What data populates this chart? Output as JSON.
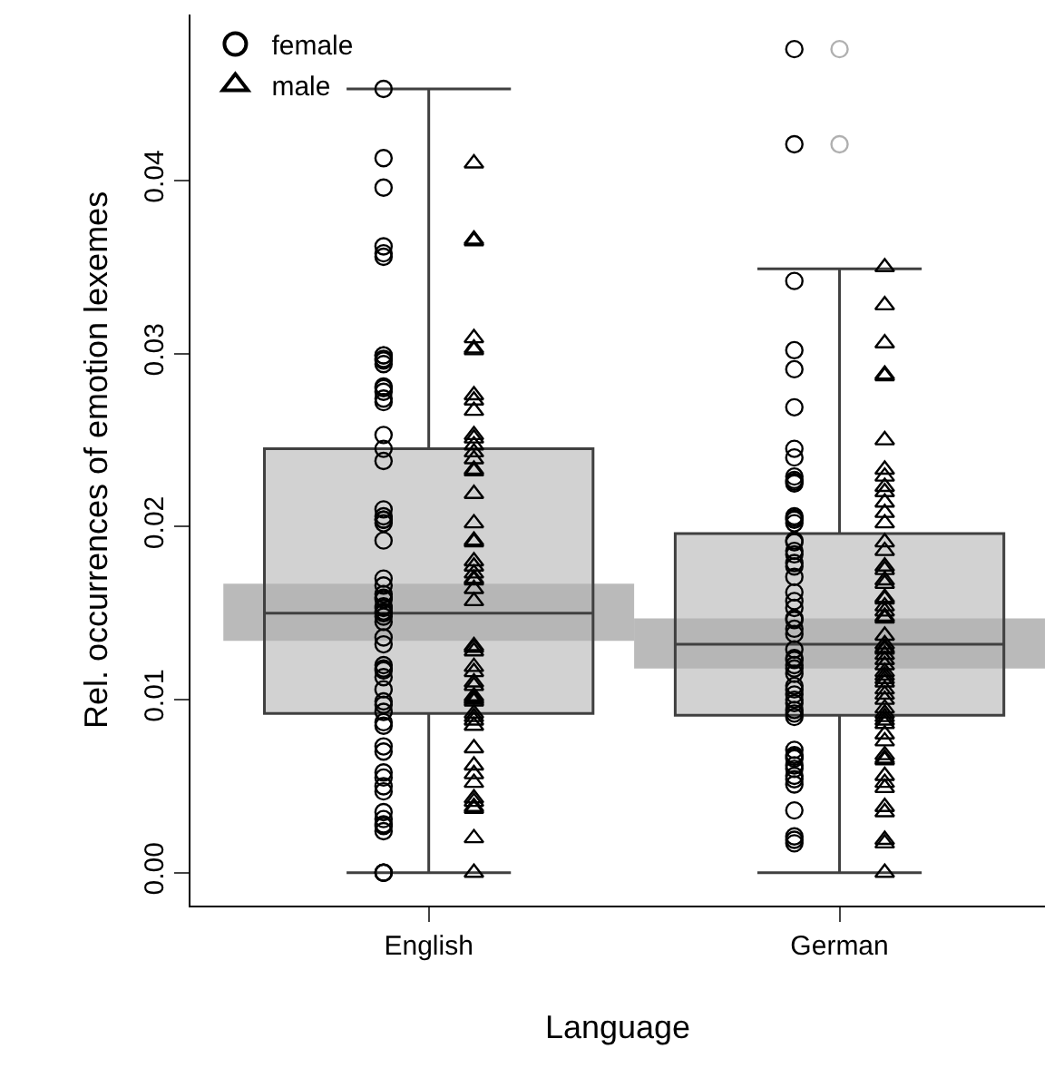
{
  "chart_data": {
    "type": "box",
    "xlabel": "Language",
    "ylabel": "Rel. occurrences of emotion lexemes",
    "categories": [
      "English",
      "German"
    ],
    "ylim": [
      -0.0019,
      0.0496
    ],
    "yticks": [
      {
        "value": 0,
        "label": "0.00"
      },
      {
        "value": 0.01,
        "label": "0.01"
      },
      {
        "value": 0.02,
        "label": "0.02"
      },
      {
        "value": 0.03,
        "label": "0.03"
      },
      {
        "value": 0.04,
        "label": "0.04"
      }
    ],
    "legend": "top left",
    "boxes": [
      {
        "low": 0,
        "q1": 0.0092,
        "median": 0.015,
        "q3": 0.0245,
        "high": 0.0453
      },
      {
        "low": 0,
        "q1": 0.0091,
        "median": 0.0132,
        "q3": 0.0196,
        "high": 0.0349,
        "outliers": [
          0.0476,
          0.0421
        ]
      }
    ],
    "series": [
      {
        "type": "bar",
        "color": "#8c8c8c",
        "base": [
          0.0134,
          0.0118
        ],
        "values": [
          0.0033,
          0.0029
        ]
      },
      {
        "type": "scatter",
        "name": "female",
        "color": "#000000",
        "marker": "circle",
        "x": [
          "English",
          "English",
          "English",
          "English",
          "English",
          "English",
          "English",
          "English",
          "English",
          "English",
          "English",
          "English",
          "English",
          "English",
          "English",
          "English",
          "English",
          "English",
          "English",
          "English",
          "English",
          "English",
          "English",
          "English",
          "English",
          "English",
          "English",
          "English",
          "English",
          "English",
          "English",
          "English",
          "English",
          "English",
          "English",
          "English",
          "English",
          "English",
          "English",
          "English",
          "English",
          "English",
          "English",
          "English",
          "English",
          "English",
          "English",
          "English",
          "English",
          "English",
          "English",
          "English",
          "English",
          "English",
          "English",
          "English",
          "English",
          "English",
          "English",
          "English",
          "English",
          "English",
          "German",
          "German",
          "German",
          "German",
          "German",
          "German",
          "German",
          "German",
          "German",
          "German",
          "German",
          "German",
          "German",
          "German",
          "German",
          "German",
          "German",
          "German",
          "German",
          "German",
          "German",
          "German",
          "German",
          "German",
          "German",
          "German",
          "German",
          "German",
          "German",
          "German",
          "German",
          "German",
          "German",
          "German",
          "German",
          "German",
          "German",
          "German",
          "German",
          "German",
          "German",
          "German",
          "German",
          "German",
          "German",
          "German",
          "German",
          "German",
          "German",
          "German",
          "German",
          "German",
          "German",
          "German",
          "German",
          "German",
          "German"
        ],
        "values": [
          0.0453,
          0.0413,
          0.0396,
          0.0362,
          0.0356,
          0.0358,
          0.0297,
          0.0299,
          0.0296,
          0.0294,
          0.0299,
          0.0281,
          0.028,
          0.0274,
          0.0278,
          0.0272,
          0.0253,
          0.0245,
          0.0238,
          0.021,
          0.0206,
          0.0204,
          0.0204,
          0.0202,
          0.0192,
          0.017,
          0.0166,
          0.0161,
          0.0159,
          0.0158,
          0.0154,
          0.0153,
          0.0151,
          0.015,
          0.0148,
          0.0145,
          0.0136,
          0.0132,
          0.012,
          0.0117,
          0.0113,
          0.0106,
          0.0118,
          0.0099,
          0.0097,
          0.0093,
          0.0087,
          0.0085,
          0.0073,
          0.007,
          0.0058,
          0.0055,
          0.005,
          0.0047,
          0.0035,
          0.0031,
          0.0027,
          0.0028,
          0.0024,
          0,
          0,
          0,
          0.0476,
          0.0421,
          0.0342,
          0.0302,
          0.0291,
          0.0269,
          0.0245,
          0.024,
          0.0229,
          0.0227,
          0.0225,
          0.0226,
          0.0206,
          0.0204,
          0.0205,
          0.0202,
          0.0192,
          0.0191,
          0.0186,
          0.0184,
          0.0179,
          0.0177,
          0.0171,
          0.0162,
          0.0157,
          0.0153,
          0.0147,
          0.0146,
          0.0141,
          0.0138,
          0.0129,
          0.0124,
          0.0123,
          0.012,
          0.0118,
          0.0115,
          0.0108,
          0.0106,
          0.0103,
          0.01,
          0.0098,
          0.0094,
          0.0092,
          0.009,
          0.0071,
          0.0068,
          0.0067,
          0.0066,
          0.0062,
          0.006,
          0.0056,
          0.0054,
          0.0051,
          0.0036,
          0.0021,
          0.0019,
          0.0017
        ]
      },
      {
        "type": "scatter",
        "name": "male",
        "color": "#000000",
        "marker": "triangle",
        "x": [
          "English",
          "English",
          "English",
          "English",
          "English",
          "English",
          "English",
          "English",
          "English",
          "English",
          "English",
          "English",
          "English",
          "English",
          "English",
          "English",
          "English",
          "English",
          "English",
          "English",
          "English",
          "English",
          "English",
          "English",
          "English",
          "English",
          "English",
          "English",
          "English",
          "English",
          "English",
          "English",
          "English",
          "English",
          "English",
          "English",
          "English",
          "English",
          "English",
          "English",
          "English",
          "English",
          "English",
          "English",
          "English",
          "English",
          "English",
          "English",
          "English",
          "English",
          "English",
          "English",
          "German",
          "German",
          "German",
          "German",
          "German",
          "German",
          "German",
          "German",
          "German",
          "German",
          "German",
          "German",
          "German",
          "German",
          "German",
          "German",
          "German",
          "German",
          "German",
          "German",
          "German",
          "German",
          "German",
          "German",
          "German",
          "German",
          "German",
          "German",
          "German",
          "German",
          "German",
          "German",
          "German",
          "German",
          "German",
          "German",
          "German",
          "German",
          "German",
          "German",
          "German",
          "German",
          "German",
          "German",
          "German",
          "German",
          "German",
          "German",
          "German",
          "German",
          "German",
          "German",
          "German",
          "German",
          "German",
          "German",
          "German"
        ],
        "values": [
          0.041,
          0.0366,
          0.0365,
          0.0309,
          0.0303,
          0.0302,
          0.0276,
          0.0273,
          0.0267,
          0.0253,
          0.0247,
          0.0251,
          0.0243,
          0.0239,
          0.0232,
          0.0233,
          0.0219,
          0.0202,
          0.0191,
          0.0192,
          0.018,
          0.0177,
          0.0173,
          0.017,
          0.0169,
          0.0164,
          0.0157,
          0.0131,
          0.013,
          0.0128,
          0.0119,
          0.0116,
          0.011,
          0.0108,
          0.0102,
          0.0101,
          0.01,
          0.0099,
          0.0092,
          0.009,
          0.0088,
          0.0085,
          0.0072,
          0.0062,
          0.0057,
          0.0052,
          0.0043,
          0.0041,
          0.0038,
          0.0037,
          0.002,
          0,
          0.035,
          0.0328,
          0.0306,
          0.0288,
          0.0287,
          0.025,
          0.0233,
          0.0229,
          0.0223,
          0.022,
          0.0214,
          0.0208,
          0.0202,
          0.0191,
          0.0186,
          0.0177,
          0.0175,
          0.0169,
          0.0167,
          0.0159,
          0.0158,
          0.0154,
          0.0151,
          0.0148,
          0.0147,
          0.0137,
          0.0132,
          0.013,
          0.0129,
          0.0126,
          0.0123,
          0.012,
          0.0116,
          0.0114,
          0.0112,
          0.011,
          0.0106,
          0.0103,
          0.01,
          0.0095,
          0.0092,
          0.009,
          0.0088,
          0.0086,
          0.008,
          0.0076,
          0.0068,
          0.0066,
          0.0065,
          0.0052,
          0.0049,
          0.0056,
          0.0038,
          0.0035,
          0.0019,
          0.0017,
          0
        ]
      }
    ]
  }
}
